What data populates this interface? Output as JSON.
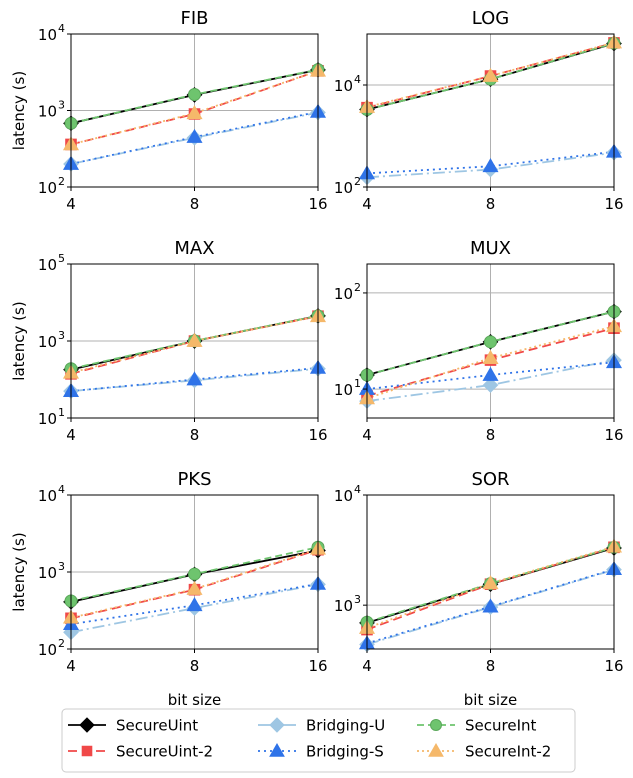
{
  "chart_data": [
    {
      "type": "line",
      "title": "FIB",
      "xlabel": "",
      "ylabel": "latency (s)",
      "yscale": "log",
      "ylim": [
        100,
        10000
      ],
      "yticks": [
        {
          "v": 100,
          "label": "10",
          "sup": "2"
        },
        {
          "v": 1000,
          "label": "10",
          "sup": "3"
        },
        {
          "v": 10000,
          "label": "10",
          "sup": "4"
        }
      ],
      "x": [
        4,
        8,
        16
      ],
      "series": [
        {
          "name": "SecureUint",
          "values": [
            680,
            1600,
            3400
          ]
        },
        {
          "name": "SecureUint-2",
          "values": [
            360,
            900,
            3300
          ]
        },
        {
          "name": "Bridging-U",
          "values": [
            200,
            440,
            940
          ]
        },
        {
          "name": "Bridging-S",
          "values": [
            200,
            450,
            960
          ]
        },
        {
          "name": "SecureInt",
          "values": [
            680,
            1620,
            3420
          ]
        },
        {
          "name": "SecureInt-2",
          "values": [
            360,
            920,
            3300
          ]
        }
      ]
    },
    {
      "type": "line",
      "title": "LOG",
      "xlabel": "",
      "ylabel": "",
      "yscale": "log",
      "ylim": [
        100,
        100000
      ],
      "yticks": [
        {
          "v": 100,
          "label": "10",
          "sup": "2"
        },
        {
          "v": 10000,
          "label": "10",
          "sup": "4"
        }
      ],
      "x": [
        4,
        8,
        16
      ],
      "series": [
        {
          "name": "SecureUint",
          "values": [
            3300,
            13000,
            65000
          ]
        },
        {
          "name": "SecureUint-2",
          "values": [
            3600,
            15000,
            67000
          ]
        },
        {
          "name": "Bridging-U",
          "values": [
            155,
            220,
            470
          ]
        },
        {
          "name": "Bridging-S",
          "values": [
            185,
            255,
            490
          ]
        },
        {
          "name": "SecureInt",
          "values": [
            3300,
            13000,
            66000
          ]
        },
        {
          "name": "SecureInt-2",
          "values": [
            3700,
            15000,
            68000
          ]
        }
      ]
    },
    {
      "type": "line",
      "title": "MAX",
      "xlabel": "",
      "ylabel": "latency (s)",
      "yscale": "log",
      "ylim": [
        10,
        100000
      ],
      "yticks": [
        {
          "v": 10,
          "label": "10",
          "sup": "1"
        },
        {
          "v": 1000,
          "label": "10",
          "sup": "3"
        },
        {
          "v": 100000,
          "label": "10",
          "sup": "5"
        }
      ],
      "x": [
        4,
        8,
        16
      ],
      "series": [
        {
          "name": "SecureUint",
          "values": [
            180,
            1000,
            4500
          ]
        },
        {
          "name": "SecureUint-2",
          "values": [
            140,
            1000,
            4400
          ]
        },
        {
          "name": "Bridging-U",
          "values": [
            50,
            95,
            190
          ]
        },
        {
          "name": "Bridging-S",
          "values": [
            50,
            100,
            200
          ]
        },
        {
          "name": "SecureInt",
          "values": [
            190,
            1010,
            4500
          ]
        },
        {
          "name": "SecureInt-2",
          "values": [
            150,
            1000,
            4400
          ]
        }
      ]
    },
    {
      "type": "line",
      "title": "MUX",
      "xlabel": "",
      "ylabel": "",
      "yscale": "log",
      "ylim": [
        5,
        200
      ],
      "yticks": [
        {
          "v": 10,
          "label": "10",
          "sup": "1"
        },
        {
          "v": 100,
          "label": "10",
          "sup": "2"
        }
      ],
      "x": [
        4,
        8,
        16
      ],
      "series": [
        {
          "name": "SecureUint",
          "values": [
            14,
            31,
            64
          ]
        },
        {
          "name": "SecureUint-2",
          "values": [
            8.5,
            20,
            43
          ]
        },
        {
          "name": "Bridging-U",
          "values": [
            7.5,
            11,
            20
          ]
        },
        {
          "name": "Bridging-S",
          "values": [
            10,
            14,
            19
          ]
        },
        {
          "name": "SecureInt",
          "values": [
            14,
            31,
            64
          ]
        },
        {
          "name": "SecureInt-2",
          "values": [
            8,
            21,
            45
          ]
        }
      ]
    },
    {
      "type": "line",
      "title": "PKS",
      "xlabel": "bit size",
      "ylabel": "latency (s)",
      "yscale": "log",
      "ylim": [
        100,
        10000
      ],
      "yticks": [
        {
          "v": 100,
          "label": "10",
          "sup": "2"
        },
        {
          "v": 1000,
          "label": "10",
          "sup": "3"
        },
        {
          "v": 10000,
          "label": "10",
          "sup": "4"
        }
      ],
      "x": [
        4,
        8,
        16
      ],
      "series": [
        {
          "name": "SecureUint",
          "values": [
            410,
            930,
            1900
          ]
        },
        {
          "name": "SecureUint-2",
          "values": [
            250,
            590,
            1950
          ]
        },
        {
          "name": "Bridging-U",
          "values": [
            165,
            340,
            690
          ]
        },
        {
          "name": "Bridging-S",
          "values": [
            210,
            370,
            700
          ]
        },
        {
          "name": "SecureInt",
          "values": [
            420,
            940,
            2100
          ]
        },
        {
          "name": "SecureInt-2",
          "values": [
            255,
            600,
            2000
          ]
        }
      ]
    },
    {
      "type": "line",
      "title": "SOR",
      "xlabel": "bit size",
      "ylabel": "",
      "yscale": "log",
      "ylim": [
        400,
        10000
      ],
      "yticks": [
        {
          "v": 1000,
          "label": "10",
          "sup": "3"
        },
        {
          "v": 10000,
          "label": "10",
          "sup": "4"
        }
      ],
      "x": [
        4,
        8,
        16
      ],
      "series": [
        {
          "name": "SecureUint",
          "values": [
            690,
            1550,
            3300
          ]
        },
        {
          "name": "SecureUint-2",
          "values": [
            600,
            1550,
            3350
          ]
        },
        {
          "name": "Bridging-U",
          "values": [
            440,
            960,
            2100
          ]
        },
        {
          "name": "Bridging-S",
          "values": [
            450,
            970,
            2120
          ]
        },
        {
          "name": "SecureInt",
          "values": [
            700,
            1570,
            3350
          ]
        },
        {
          "name": "SecureInt-2",
          "values": [
            620,
            1580,
            3400
          ]
        }
      ]
    }
  ],
  "legend": {
    "entries": [
      {
        "name": "SecureUint",
        "color": "#000000",
        "dash": "",
        "marker": "diamond",
        "fill": "#000000"
      },
      {
        "name": "SecureUint-2",
        "color": "#f04848",
        "dash": "9,5",
        "marker": "square",
        "fill": "#f04848"
      },
      {
        "name": "Bridging-U",
        "color": "#9ec6e3",
        "dash": "",
        "marker": "diamond",
        "fill": "#9ec6e3"
      },
      {
        "name": "Bridging-S",
        "color": "#2f73e8",
        "dash": "2,4",
        "marker": "triangle",
        "fill": "#2f73e8"
      },
      {
        "name": "SecureInt",
        "color": "#6ec46e",
        "dash": "7,4",
        "marker": "circle",
        "fill": "#6ec46e"
      },
      {
        "name": "SecureInt-2",
        "color": "#f5b86a",
        "dash": "2,3",
        "marker": "triangle",
        "fill": "#f5b86a"
      }
    ]
  },
  "series_style": {
    "SecureUint": {
      "color": "#000000",
      "dash": "",
      "marker": "diamond",
      "fill": "#000000",
      "mfill": "#6ec46e"
    },
    "SecureUint-2": {
      "color": "#f04848",
      "dash": "9,5",
      "marker": "square",
      "fill": "#f04848",
      "mfill": "#f04848"
    },
    "Bridging-U": {
      "color": "#9ec6e3",
      "dash": "12,4,2,4",
      "marker": "diamond",
      "fill": "#9ec6e3",
      "mfill": "#9ec6e3"
    },
    "Bridging-S": {
      "color": "#2f73e8",
      "dash": "2,4",
      "marker": "triangle",
      "fill": "#2f73e8",
      "mfill": "#2f73e8"
    },
    "SecureInt": {
      "color": "#6ec46e",
      "dash": "7,4",
      "marker": "circle",
      "fill": "#6ec46e",
      "mfill": "#6ec46e"
    },
    "SecureInt-2": {
      "color": "#f5b86a",
      "dash": "2,3",
      "marker": "triangle",
      "fill": "#f5b86a",
      "mfill": "#f5b86a"
    }
  }
}
